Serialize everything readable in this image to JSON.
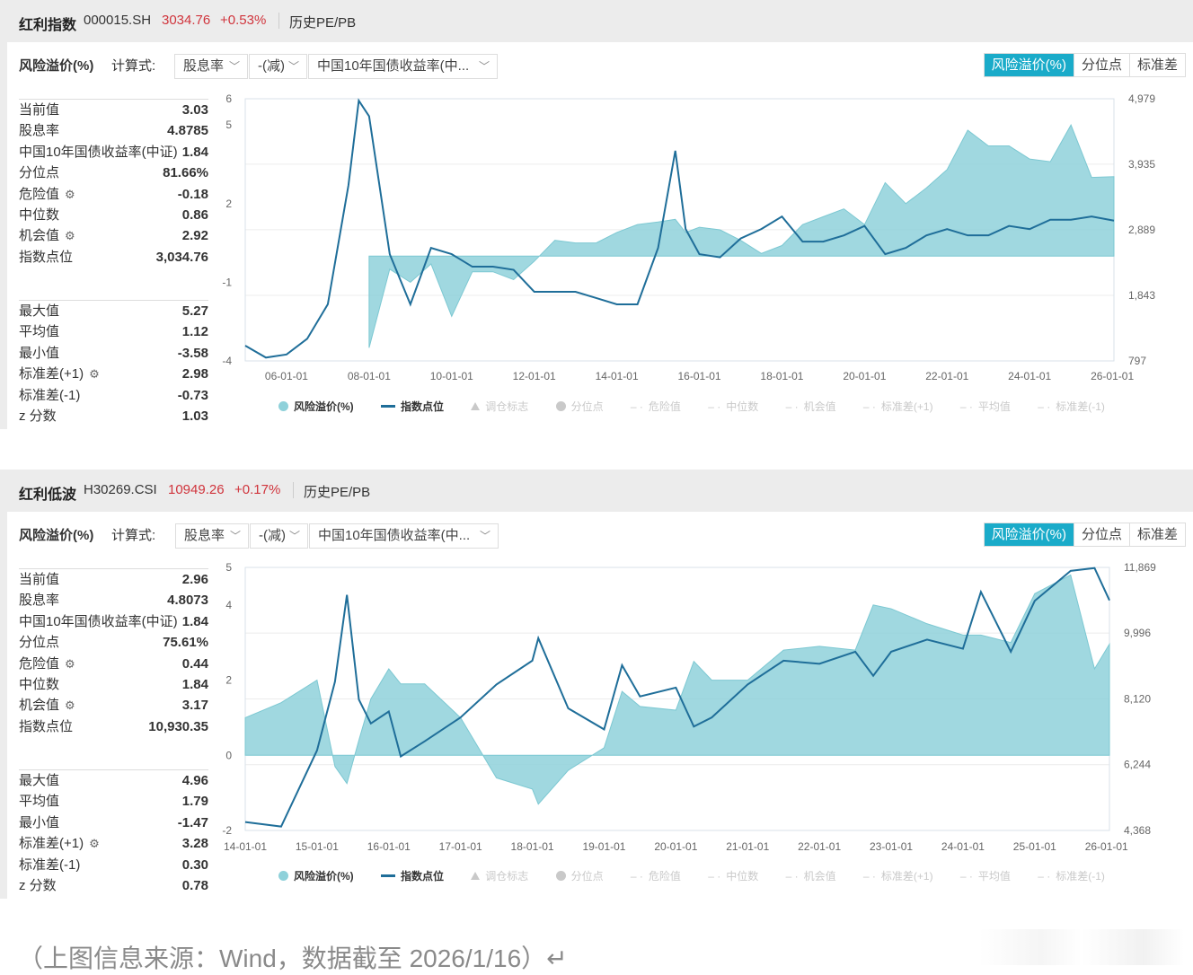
{
  "panels": [
    {
      "header": {
        "name": "红利指数",
        "code": "000015.SH",
        "price": "3034.76",
        "change": "+0.53%",
        "link": "历史PE/PB"
      },
      "controls": {
        "metric_label": "风险溢价(%)",
        "formula_label": "计算式:",
        "select1": "股息率",
        "select2": "-(减)",
        "select3": "中国10年国债收益率(中..."
      },
      "toggles": [
        {
          "label": "风险溢价(%)",
          "active": true
        },
        {
          "label": "分位点",
          "active": false
        },
        {
          "label": "标准差",
          "active": false
        }
      ],
      "stats_top": [
        {
          "label": "当前值",
          "value": "3.03"
        },
        {
          "label": "股息率",
          "value": "4.8785"
        },
        {
          "label": "中国10年国债收益率(中证)",
          "value": "1.84"
        },
        {
          "label": "分位点",
          "value": "81.66%"
        },
        {
          "label": "危险值",
          "value": "-0.18",
          "gear": true
        },
        {
          "label": "中位数",
          "value": "0.86"
        },
        {
          "label": "机会值",
          "value": "2.92",
          "gear": true
        },
        {
          "label": "指数点位",
          "value": "3,034.76"
        }
      ],
      "stats_bottom": [
        {
          "label": "最大值",
          "value": "5.27"
        },
        {
          "label": "平均值",
          "value": "1.12"
        },
        {
          "label": "最小值",
          "value": "-3.58"
        },
        {
          "label": "标准差(+1)",
          "value": "2.98",
          "gear": true
        },
        {
          "label": "标准差(-1)",
          "value": "-0.73"
        },
        {
          "label": "z 分数",
          "value": "1.03"
        }
      ]
    },
    {
      "header": {
        "name": "红利低波",
        "code": "H30269.CSI",
        "price": "10949.26",
        "change": "+0.17%",
        "link": "历史PE/PB"
      },
      "controls": {
        "metric_label": "风险溢价(%)",
        "formula_label": "计算式:",
        "select1": "股息率",
        "select2": "-(减)",
        "select3": "中国10年国债收益率(中..."
      },
      "toggles": [
        {
          "label": "风险溢价(%)",
          "active": true
        },
        {
          "label": "分位点",
          "active": false
        },
        {
          "label": "标准差",
          "active": false
        }
      ],
      "stats_top": [
        {
          "label": "当前值",
          "value": "2.96"
        },
        {
          "label": "股息率",
          "value": "4.8073"
        },
        {
          "label": "中国10年国债收益率(中证)",
          "value": "1.84"
        },
        {
          "label": "分位点",
          "value": "75.61%"
        },
        {
          "label": "危险值",
          "value": "0.44",
          "gear": true
        },
        {
          "label": "中位数",
          "value": "1.84"
        },
        {
          "label": "机会值",
          "value": "3.17",
          "gear": true
        },
        {
          "label": "指数点位",
          "value": "10,930.35"
        }
      ],
      "stats_bottom": [
        {
          "label": "最大值",
          "value": "4.96"
        },
        {
          "label": "平均值",
          "value": "1.79"
        },
        {
          "label": "最小值",
          "value": "-1.47"
        },
        {
          "label": "标准差(+1)",
          "value": "3.28",
          "gear": true
        },
        {
          "label": "标准差(-1)",
          "value": "0.30"
        },
        {
          "label": "z 分数",
          "value": "0.78"
        }
      ]
    }
  ],
  "legend": [
    {
      "label": "风险溢价(%)",
      "marker": "circle",
      "active": true,
      "color": "#8fd1da"
    },
    {
      "label": "指数点位",
      "marker": "line",
      "active": true,
      "color": "#1f6e99"
    },
    {
      "label": "调仓标志",
      "marker": "triangle",
      "active": false
    },
    {
      "label": "分位点",
      "marker": "circle",
      "active": false
    },
    {
      "label": "危险值",
      "marker": "dash",
      "active": false
    },
    {
      "label": "中位数",
      "marker": "dash",
      "active": false
    },
    {
      "label": "机会值",
      "marker": "dash",
      "active": false
    },
    {
      "label": "标准差(+1)",
      "marker": "dash",
      "active": false
    },
    {
      "label": "平均值",
      "marker": "dash",
      "active": false
    },
    {
      "label": "标准差(-1)",
      "marker": "dash",
      "active": false
    }
  ],
  "colors": {
    "accent": "#1aabc9",
    "price_up": "#d0343c",
    "area": "#8fd1da",
    "line": "#1f6e99",
    "inactive": "#c9c9c9"
  },
  "caption": "（上图信息来源：Wind，数据截至 2026/1/16）↵",
  "chart_data": [
    {
      "type": "area+line",
      "y_left_ticks": [
        6,
        5,
        2,
        -1,
        -4
      ],
      "y_right_ticks": [
        "4,979",
        "3,935",
        "2,889",
        "1,843",
        "797"
      ],
      "x_ticks": [
        "06-01-01",
        "08-01-01",
        "10-01-01",
        "12-01-01",
        "14-01-01",
        "16-01-01",
        "18-01-01",
        "20-01-01",
        "22-01-01",
        "24-01-01",
        "26-01-01"
      ],
      "x": [
        "2005-01",
        "2005-07",
        "2006-01",
        "2006-07",
        "2007-01",
        "2007-07",
        "2007-10",
        "2008-01",
        "2008-04",
        "2008-07",
        "2009-01",
        "2009-07",
        "2010-01",
        "2010-07",
        "2011-01",
        "2011-07",
        "2012-01",
        "2012-07",
        "2013-01",
        "2013-07",
        "2014-01",
        "2014-07",
        "2015-01",
        "2015-06",
        "2015-09",
        "2016-01",
        "2016-07",
        "2017-01",
        "2017-07",
        "2018-01",
        "2018-07",
        "2019-01",
        "2019-07",
        "2020-01",
        "2020-07",
        "2021-01",
        "2021-07",
        "2022-01",
        "2022-07",
        "2023-01",
        "2023-07",
        "2024-01",
        "2024-07",
        "2025-01",
        "2025-07",
        "2026-01-16"
      ],
      "series": [
        {
          "name": "风险溢价(%)",
          "axis": "left",
          "style": "area",
          "values": [
            null,
            null,
            null,
            null,
            null,
            null,
            null,
            -3.5,
            -2.0,
            -0.5,
            -1.0,
            -0.3,
            -2.3,
            -0.6,
            -0.6,
            -0.9,
            -0.2,
            0.6,
            0.5,
            0.5,
            0.9,
            1.2,
            1.3,
            1.4,
            0.9,
            1.1,
            1.0,
            0.6,
            0.1,
            0.4,
            1.2,
            1.5,
            1.8,
            1.2,
            2.8,
            2.0,
            2.6,
            3.3,
            4.8,
            4.2,
            4.2,
            3.7,
            3.6,
            5.0,
            3.0,
            3.03
          ]
        },
        {
          "name": "指数点位",
          "axis": "right",
          "style": "line",
          "values": [
            1040,
            850,
            900,
            1150,
            1700,
            3600,
            4950,
            4700,
            3600,
            2500,
            1700,
            2600,
            2500,
            2300,
            2300,
            2250,
            1900,
            1900,
            1900,
            1800,
            1700,
            1700,
            2600,
            4150,
            2900,
            2500,
            2450,
            2750,
            2900,
            3100,
            2700,
            2700,
            2800,
            2950,
            2500,
            2600,
            2800,
            2900,
            2800,
            2800,
            2950,
            2900,
            3050,
            3050,
            3100,
            3035
          ]
        }
      ]
    },
    {
      "type": "area+line",
      "y_left_ticks": [
        5,
        4,
        2,
        0,
        -2
      ],
      "y_right_ticks": [
        "11,869",
        "9,996",
        "8,120",
        "6,244",
        "4,368"
      ],
      "x_ticks": [
        "14-01-01",
        "15-01-01",
        "16-01-01",
        "17-01-01",
        "18-01-01",
        "19-01-01",
        "20-01-01",
        "21-01-01",
        "22-01-01",
        "23-01-01",
        "24-01-01",
        "25-01-01",
        "26-01-01"
      ],
      "x": [
        "2014-01",
        "2014-07",
        "2015-01",
        "2015-04",
        "2015-06",
        "2015-08",
        "2015-10",
        "2016-01",
        "2016-03",
        "2016-07",
        "2017-01",
        "2017-07",
        "2018-01",
        "2018-02",
        "2018-07",
        "2019-01",
        "2019-04",
        "2019-07",
        "2020-01",
        "2020-04",
        "2020-07",
        "2021-01",
        "2021-07",
        "2022-01",
        "2022-07",
        "2022-10",
        "2023-01",
        "2023-07",
        "2024-01",
        "2024-04",
        "2024-09",
        "2025-01",
        "2025-07",
        "2025-11",
        "2026-01-16"
      ],
      "series": [
        {
          "name": "风险溢价(%)",
          "axis": "left",
          "style": "area",
          "values": [
            1.0,
            1.4,
            2.0,
            -0.3,
            -0.75,
            0.4,
            1.5,
            2.3,
            1.9,
            1.9,
            1.0,
            -0.6,
            -0.9,
            -1.3,
            -0.4,
            0.2,
            1.7,
            1.3,
            1.2,
            2.5,
            2.0,
            2.0,
            2.8,
            2.9,
            2.8,
            4.0,
            3.9,
            3.5,
            3.2,
            3.2,
            3.0,
            4.3,
            4.8,
            2.3,
            2.96
          ]
        },
        {
          "name": "指数点位",
          "axis": "right",
          "style": "line",
          "values": [
            4607,
            4480,
            6650,
            8610,
            11085,
            8100,
            7420,
            7760,
            6480,
            6910,
            7590,
            8530,
            9210,
            9850,
            7850,
            7250,
            9080,
            8190,
            8440,
            7330,
            7590,
            8530,
            9210,
            9120,
            9465,
            8780,
            9465,
            9810,
            9550,
            11170,
            9465,
            10915,
            11770,
            11850,
            10930
          ]
        }
      ]
    }
  ]
}
